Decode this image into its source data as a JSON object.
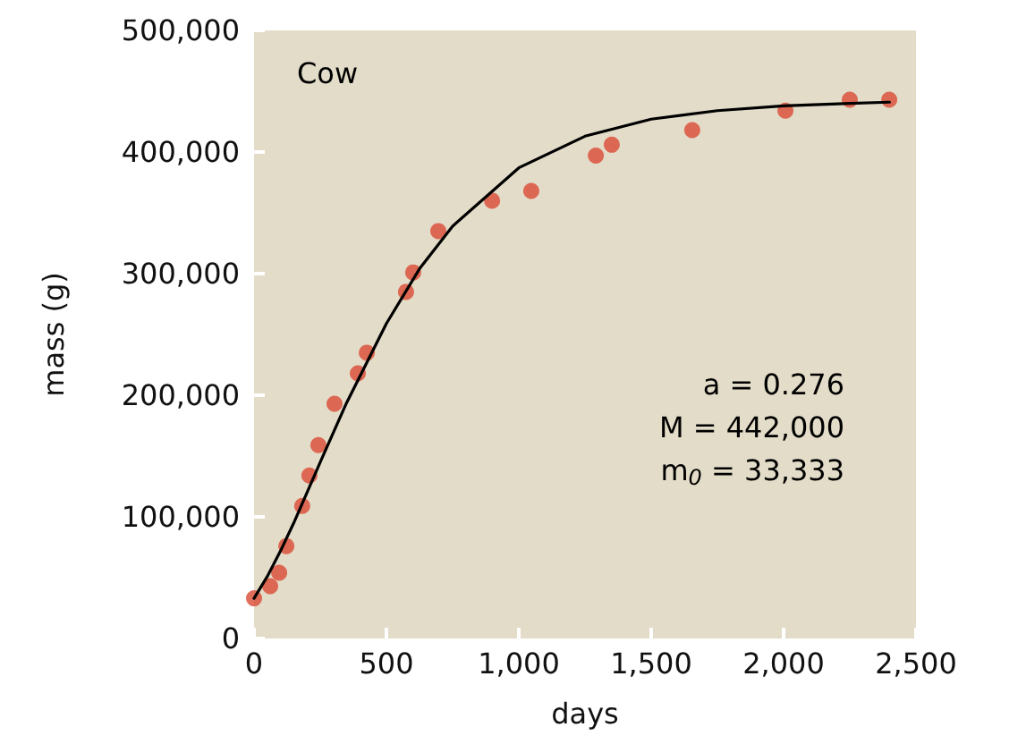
{
  "chart_data": {
    "type": "scatter",
    "xlabel": "days",
    "ylabel": "mass (g)",
    "annotations": [
      "Cow",
      "a = 0.276",
      "M = 442,000",
      "m$_{0}$ = 33,333"
    ],
    "series": [
      {
        "color": "#d94a35",
        "marker": "circle",
        "x": [
          0,
          61,
          95,
          122,
          182,
          209,
          243,
          304,
          392,
          426,
          574,
          601,
          696,
          899,
          1047,
          1291,
          1351,
          1655,
          2007,
          2250,
          2399
        ],
        "values": [
          33000,
          43000,
          54000,
          76000,
          109000,
          134000,
          159000,
          193000,
          218000,
          235000,
          285000,
          301000,
          335000,
          360000,
          368000,
          397000,
          406000,
          418000,
          434000,
          443000,
          443000
        ]
      },
      {
        "type": "line",
        "color": "#000000",
        "marker": "none",
        "line_style": "solid",
        "x": [
          0,
          50,
          100,
          150,
          200,
          250,
          350,
          500,
          625,
          750,
          1000,
          1250,
          1500,
          1750,
          2000,
          2250,
          2400
        ],
        "values": [
          33000,
          51000,
          72000,
          95000,
          120000,
          145000,
          194000,
          259000,
          304000,
          339000,
          387000,
          413000,
          427000,
          434000,
          438000,
          440000,
          441000
        ]
      }
    ],
    "xlim": [
      0,
      2500
    ],
    "xticks": [
      0,
      500,
      {
        "value": 1000,
        "label": "1,000"
      },
      {
        "value": 1500,
        "label": "1,500"
      },
      {
        "value": 2000,
        "label": "2,000"
      },
      {
        "value": 2500,
        "label": "2,500"
      }
    ],
    "ylim": [
      0,
      500000
    ],
    "yticks": [
      0,
      {
        "value": 100000,
        "label": "100,000"
      },
      {
        "value": 200000,
        "label": "200,000"
      },
      {
        "value": 300000,
        "label": "300,000"
      },
      {
        "value": 400000,
        "label": "400,000"
      },
      {
        "value": 500000,
        "label": "500,000"
      }
    ],
    "grid": false
  }
}
